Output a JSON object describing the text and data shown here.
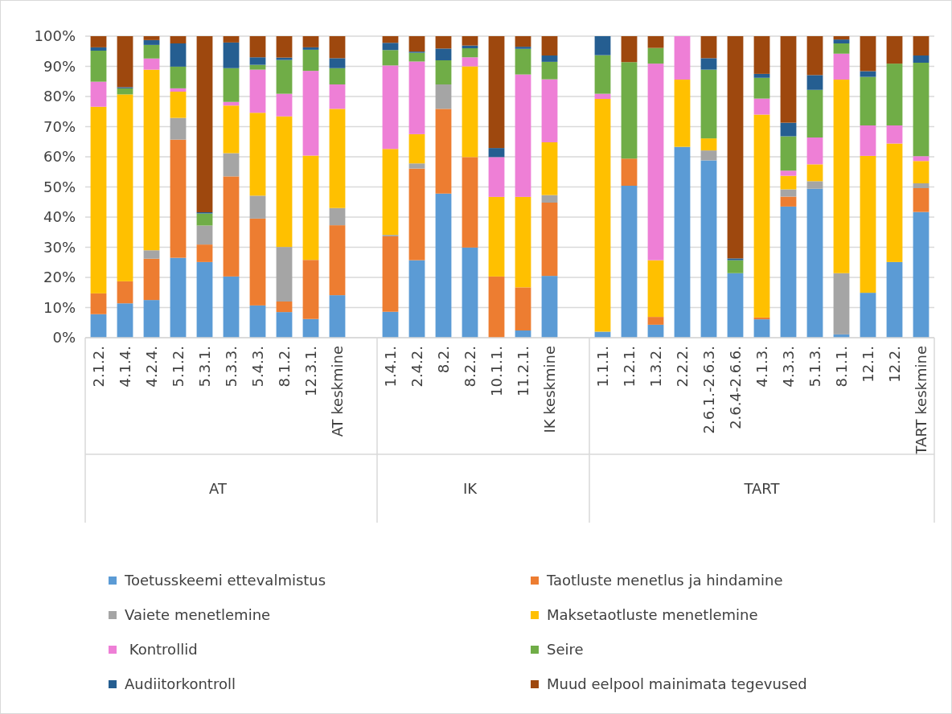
{
  "chart_data": {
    "type": "bar",
    "stacked": true,
    "categories": [
      "2.1.2.",
      "4.1.4.",
      "4.2.4.",
      "5.1.2.",
      "5.3.1.",
      "5.3.3.",
      "5.4.3.",
      "8.1.2.",
      "12.3.1.",
      "AT keskmine",
      null,
      "1.4.1.",
      "2.4.2.",
      "8.2.",
      "8.2.2.",
      "10.1.1.",
      "11.2.1.",
      "IK keskmine",
      null,
      "1.1.1.",
      "1.2.1.",
      "1.3.2.",
      "2.2.2.",
      "2.6.1.-2.6.3.",
      "2.6.4-2.6.6.",
      "4.1.3.",
      "4.3.3.",
      "5.1.3.",
      "8.1.1.",
      "12.1.",
      "12.2.",
      "TART keskmine"
    ],
    "series": [
      {
        "name": "Toetusskeemi ettevalmistus",
        "color": "#5b9bd5",
        "values": [
          7.8,
          11.4,
          12.5,
          26.5,
          25.1,
          20.3,
          10.7,
          8.5,
          6.2,
          14.1,
          null,
          8.6,
          25.7,
          47.8,
          29.9,
          0,
          2.4,
          20.5,
          null,
          2.0,
          50.4,
          4.3,
          63.3,
          58.8,
          21.4,
          6.1,
          43.5,
          49.4,
          1.1,
          14.9,
          25.1,
          41.7
        ]
      },
      {
        "name": "Taotluste menetlus ja hindamine",
        "color": "#ed7d31",
        "values": [
          6.9,
          7.3,
          13.7,
          39.2,
          5.8,
          33.2,
          28.8,
          3.5,
          19.6,
          23.2,
          null,
          25.0,
          30.4,
          28.1,
          30.0,
          20.3,
          14.3,
          24.3,
          null,
          0,
          9.0,
          2.6,
          0,
          0,
          0,
          0.6,
          3.3,
          0,
          0,
          0,
          0,
          7.9
        ]
      },
      {
        "name": "Vaiete menetlemine",
        "color": "#a5a5a5",
        "values": [
          null,
          0,
          2.8,
          7.2,
          6.3,
          7.7,
          7.6,
          18.1,
          null,
          5.7,
          null,
          0.5,
          1.7,
          8.1,
          0,
          0,
          0,
          2.5,
          null,
          0,
          0,
          0,
          0,
          3.3,
          0,
          0,
          2.4,
          2.5,
          20.3,
          0,
          0,
          1.6
        ]
      },
      {
        "name": "Maksetaotluste menetlemine",
        "color": "#ffc000",
        "values": [
          61.9,
          62.0,
          59.9,
          8.7,
          0,
          15.8,
          27.5,
          43.3,
          34.6,
          32.9,
          null,
          28.5,
          9.7,
          0,
          30.1,
          26.4,
          30.0,
          17.5,
          null,
          77.2,
          0,
          18.8,
          22.3,
          4.0,
          0,
          67.3,
          4.5,
          5.6,
          64.2,
          45.4,
          39.3,
          7.4
        ]
      },
      {
        "name": " Kontrollid",
        "color": "#ee7fd6",
        "values": [
          8.3,
          null,
          3.7,
          1.1,
          0,
          1.2,
          14.3,
          7.5,
          28.1,
          8.1,
          null,
          27.7,
          24.1,
          0,
          3.0,
          13.2,
          40.6,
          20.9,
          null,
          1.7,
          0,
          65.2,
          14.4,
          0,
          0,
          5.3,
          1.7,
          8.9,
          8.6,
          10.1,
          6.0,
          1.6
        ]
      },
      {
        "name": "Seire",
        "color": "#70ad47",
        "values": [
          10.3,
          2.0,
          4.5,
          7.2,
          4.0,
          11.2,
          1.6,
          11.2,
          7.0,
          5.4,
          null,
          5.1,
          2.9,
          8.0,
          3.0,
          0,
          8.5,
          5.8,
          null,
          12.8,
          32.0,
          5.2,
          0,
          22.8,
          4.3,
          6.9,
          11.4,
          15.8,
          3.4,
          16.1,
          20.5,
          31.0
        ]
      },
      {
        "name": "Audiitorkontroll",
        "color": "#255e91",
        "values": [
          1.1,
          0.4,
          1.6,
          7.7,
          0.4,
          8.5,
          2.5,
          0.8,
          0.8,
          3.3,
          null,
          2.4,
          0.4,
          3.9,
          0.9,
          3.0,
          0.7,
          2.1,
          null,
          6.3,
          0,
          0,
          0,
          3.8,
          0.6,
          1.3,
          4.5,
          4.9,
          1.3,
          1.9,
          0,
          2.4
        ]
      },
      {
        "name": "Muud eelpool mainimata tegevused",
        "color": "#9e480e",
        "values": [
          3.7,
          16.9,
          1.3,
          2.4,
          58.4,
          2.1,
          7.0,
          7.1,
          3.7,
          7.3,
          null,
          2.2,
          5.1,
          4.1,
          3.1,
          37.1,
          3.5,
          6.4,
          null,
          0,
          8.6,
          3.9,
          0,
          7.3,
          73.7,
          12.5,
          28.7,
          12.9,
          1.1,
          11.6,
          9.1,
          6.4
        ]
      }
    ],
    "ylim": [
      0,
      100
    ],
    "yticks": [
      {
        "value": 0,
        "label": "0%"
      },
      {
        "value": 10,
        "label": "10%"
      },
      {
        "value": 20,
        "label": "20%"
      },
      {
        "value": 30,
        "label": "30%"
      },
      {
        "value": 40,
        "label": "40%"
      },
      {
        "value": 50,
        "label": "50%"
      },
      {
        "value": 60,
        "label": "60%"
      },
      {
        "value": 70,
        "label": "70%"
      },
      {
        "value": 80,
        "label": "80%"
      },
      {
        "value": 90,
        "label": "90%"
      },
      {
        "value": 100,
        "label": "100%"
      }
    ],
    "grid": "y",
    "legend": "bottom",
    "annotations": [
      "AT",
      "IK",
      "TART"
    ]
  }
}
